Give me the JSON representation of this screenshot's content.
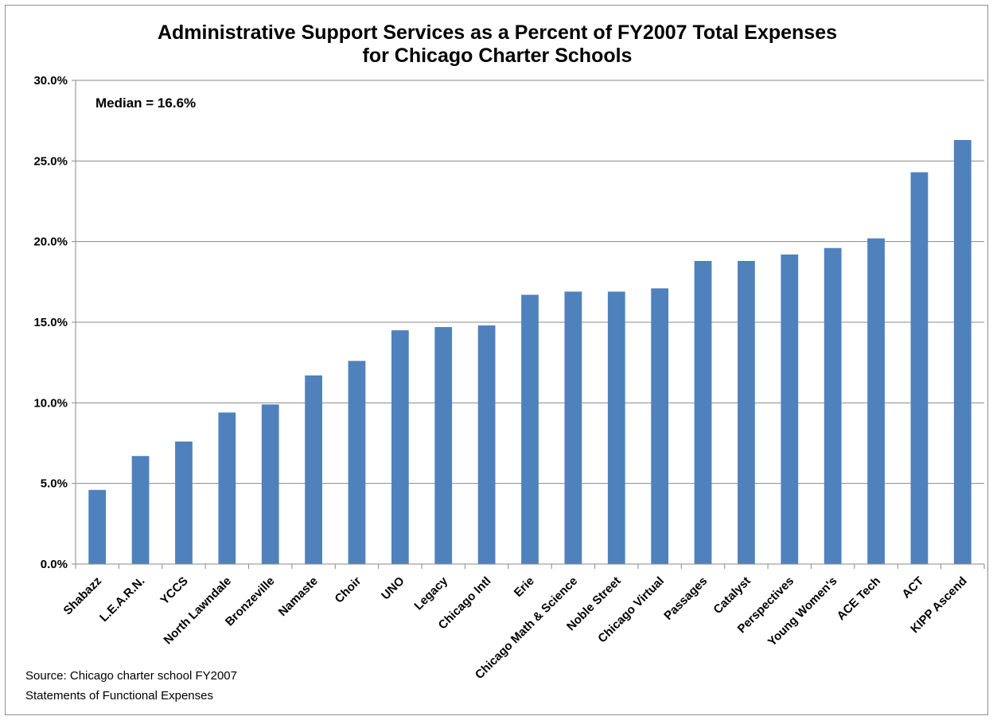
{
  "chart_data": {
    "type": "bar",
    "title": "Administrative Support Services as a Percent of FY2007 Total Expenses",
    "subtitle": "for Chicago Charter Schools",
    "xlabel": "",
    "ylabel": "",
    "ylim": [
      0,
      30
    ],
    "yticks": [
      0,
      5,
      10,
      15,
      20,
      25,
      30
    ],
    "ytick_labels": [
      "0.0%",
      "5.0%",
      "10.0%",
      "15.0%",
      "20.0%",
      "25.0%",
      "30.0%"
    ],
    "grid": true,
    "legend": "none",
    "bar_color": "#4F81BD",
    "categories": [
      "Shabazz",
      "L.E.A.R.N.",
      "YCCS",
      "North Lawndale",
      "Bronzeville",
      "Namaste",
      "Choir",
      "UNO",
      "Legacy",
      "Chicago Intl",
      "Erie",
      "Chicago Math & Science",
      "Noble Street",
      "Chicago Virtual",
      "Passages",
      "Catalyst",
      "Perspectives",
      "Young Women's",
      "ACE Tech",
      "ACT",
      "KIPP Ascend"
    ],
    "values": [
      4.6,
      6.7,
      7.6,
      9.4,
      9.9,
      11.7,
      12.6,
      14.5,
      14.7,
      14.8,
      16.7,
      16.9,
      16.9,
      17.1,
      18.8,
      18.8,
      19.2,
      19.6,
      20.2,
      24.3,
      26.3
    ],
    "annotation": "Median = 16.6%",
    "source": [
      "Source: Chicago charter school FY2007",
      "Statements of Functional Expenses"
    ]
  }
}
